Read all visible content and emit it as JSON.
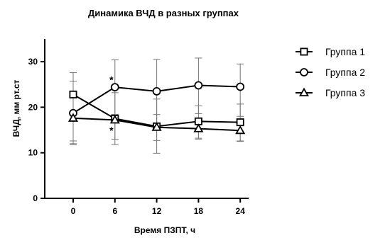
{
  "chart_data": {
    "type": "line",
    "title": "Динамика ВЧД в разных группах",
    "xlabel": "Время ПЗПТ, ч",
    "ylabel": "ВЧД, мм рт.ст",
    "x": [
      0,
      6,
      12,
      18,
      24
    ],
    "xticks": [
      "0",
      "6",
      "12",
      "18",
      "24"
    ],
    "ylim": [
      0,
      35
    ],
    "yticks": [
      0,
      10,
      20,
      30
    ],
    "grid": false,
    "legend_position": "right",
    "series": [
      {
        "name": "Группа 1",
        "marker": "square",
        "values": [
          22.8,
          17.5,
          15.8,
          16.9,
          16.7
        ],
        "error_low": [
          12.0,
          11.8,
          9.9,
          13.0,
          12.6
        ],
        "error_high": [
          27.6,
          23.2,
          21.8,
          20.3,
          20.7
        ]
      },
      {
        "name": "Группа 2",
        "marker": "circle",
        "values": [
          18.7,
          24.4,
          23.5,
          24.8,
          24.5
        ],
        "error_low": [
          11.8,
          18.4,
          16.0,
          18.6,
          18.0
        ],
        "error_high": [
          25.7,
          30.4,
          30.5,
          30.8,
          29.5
        ]
      },
      {
        "name": "Группа 3",
        "marker": "triangle",
        "values": [
          17.6,
          17.2,
          15.6,
          15.3,
          14.9
        ],
        "error_low": [
          12.6,
          13.0,
          12.7,
          13.2,
          12.5
        ],
        "error_high": [
          22.6,
          18.4,
          18.4,
          17.4,
          17.3
        ]
      }
    ],
    "annotations": [
      {
        "text": "*",
        "x": 6,
        "y": 26.5
      },
      {
        "text": "*",
        "x": 6,
        "y": 15.4
      }
    ]
  }
}
